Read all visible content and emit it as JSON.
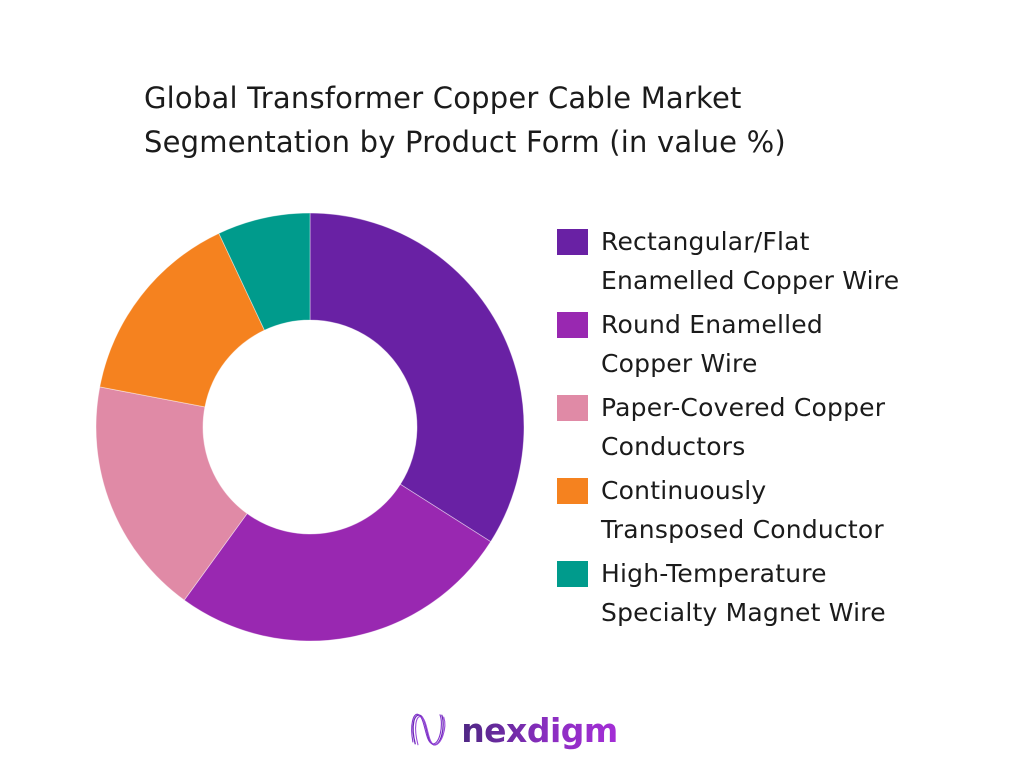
{
  "page": {
    "background": "#FFFFFF"
  },
  "title": {
    "line1": "Global Transformer Copper Cable Market",
    "line2": "Segmentation by Product Form (in value %)"
  },
  "chart_data": {
    "type": "pie",
    "variant": "donut",
    "title": "Global Transformer Copper Cable Market Segmentation by Product Form (in value %)",
    "unit": "%",
    "categories": [
      "Rectangular/Flat Enamelled Copper Wire",
      "Round Enamelled Copper Wire",
      "Paper-Covered Copper Conductors",
      "Continuously Transposed Conductor",
      "High-Temperature Specialty Magnet Wire"
    ],
    "values": [
      34,
      26,
      18,
      15,
      7
    ],
    "colors": [
      "#6921A4",
      "#9928B1",
      "#E08AA6",
      "#F5821F",
      "#009B8C"
    ],
    "start_angle_deg": 0,
    "clockwise": true,
    "inner_radius_ratio": 0.5,
    "legend_position": "right"
  },
  "legend": {
    "items": [
      {
        "line1": "Rectangular/Flat",
        "line2": "Enamelled Copper Wire"
      },
      {
        "line1": "Round Enamelled",
        "line2": "Copper Wire"
      },
      {
        "line1": "Paper-Covered Copper",
        "line2": "Conductors"
      },
      {
        "line1": "Continuously",
        "line2": "Transposed Conductor"
      },
      {
        "line1": "High-Temperature",
        "line2": "Specialty Magnet Wire"
      }
    ]
  },
  "footer": {
    "brand": "nexdigm"
  }
}
